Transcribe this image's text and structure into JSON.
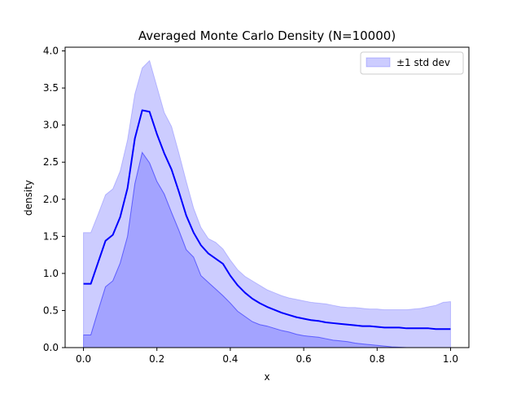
{
  "chart_data": {
    "type": "area",
    "title": "Averaged Monte Carlo Density (N=10000)",
    "xlabel": "x",
    "ylabel": "density",
    "xlim": [
      -0.05,
      1.05
    ],
    "ylim": [
      0.0,
      4.05
    ],
    "xticks": [
      0.0,
      0.2,
      0.4,
      0.6,
      0.8,
      1.0
    ],
    "xtick_labels": [
      "0.0",
      "0.2",
      "0.4",
      "0.6",
      "0.8",
      "1.0"
    ],
    "yticks": [
      0.0,
      0.5,
      1.0,
      1.5,
      2.0,
      2.5,
      3.0,
      3.5,
      4.0
    ],
    "ytick_labels": [
      "0.0",
      "0.5",
      "1.0",
      "1.5",
      "2.0",
      "2.5",
      "3.0",
      "3.5",
      "4.0"
    ],
    "grid": false,
    "legend": {
      "position": "top-right",
      "entries": [
        {
          "label": "±1 std dev",
          "color": "#0000ff",
          "alpha": 0.2
        }
      ]
    },
    "colors": {
      "mean_line": "#0000ff",
      "band_fill": "#0000ff"
    },
    "x": [
      0.0,
      0.02,
      0.04,
      0.06,
      0.08,
      0.1,
      0.12,
      0.14,
      0.16,
      0.18,
      0.2,
      0.22,
      0.24,
      0.26,
      0.28,
      0.3,
      0.32,
      0.34,
      0.36,
      0.38,
      0.4,
      0.42,
      0.44,
      0.46,
      0.48,
      0.5,
      0.52,
      0.54,
      0.56,
      0.58,
      0.6,
      0.62,
      0.64,
      0.66,
      0.68,
      0.7,
      0.72,
      0.74,
      0.76,
      0.78,
      0.8,
      0.82,
      0.84,
      0.86,
      0.88,
      0.9,
      0.92,
      0.94,
      0.96,
      0.98,
      1.0
    ],
    "series": [
      {
        "role": "mean",
        "values": [
          0.86,
          0.86,
          1.15,
          1.44,
          1.52,
          1.76,
          2.15,
          2.82,
          3.2,
          3.18,
          2.88,
          2.62,
          2.4,
          2.1,
          1.78,
          1.55,
          1.38,
          1.27,
          1.2,
          1.13,
          0.97,
          0.84,
          0.74,
          0.66,
          0.6,
          0.55,
          0.51,
          0.47,
          0.44,
          0.41,
          0.39,
          0.37,
          0.36,
          0.34,
          0.33,
          0.32,
          0.31,
          0.3,
          0.29,
          0.29,
          0.28,
          0.27,
          0.27,
          0.27,
          0.26,
          0.26,
          0.26,
          0.26,
          0.25,
          0.25,
          0.25
        ]
      },
      {
        "role": "upper",
        "values": [
          1.55,
          1.55,
          1.8,
          2.06,
          2.14,
          2.38,
          2.8,
          3.42,
          3.77,
          3.87,
          3.52,
          3.17,
          2.98,
          2.62,
          2.24,
          1.88,
          1.62,
          1.47,
          1.42,
          1.33,
          1.18,
          1.05,
          0.96,
          0.9,
          0.84,
          0.78,
          0.74,
          0.7,
          0.67,
          0.65,
          0.63,
          0.61,
          0.6,
          0.59,
          0.57,
          0.55,
          0.54,
          0.54,
          0.53,
          0.52,
          0.52,
          0.51,
          0.51,
          0.51,
          0.51,
          0.52,
          0.53,
          0.55,
          0.57,
          0.61,
          0.62
        ]
      },
      {
        "role": "lower",
        "values": [
          0.17,
          0.17,
          0.5,
          0.82,
          0.9,
          1.14,
          1.5,
          2.21,
          2.63,
          2.49,
          2.24,
          2.07,
          1.82,
          1.58,
          1.32,
          1.22,
          0.97,
          0.88,
          0.79,
          0.7,
          0.6,
          0.49,
          0.42,
          0.35,
          0.31,
          0.29,
          0.26,
          0.23,
          0.21,
          0.18,
          0.16,
          0.15,
          0.14,
          0.12,
          0.1,
          0.09,
          0.08,
          0.06,
          0.05,
          0.04,
          0.03,
          0.02,
          0.01,
          0.005,
          0.0,
          0.0,
          0.0,
          0.0,
          0.0,
          0.0,
          0.0
        ]
      }
    ]
  }
}
